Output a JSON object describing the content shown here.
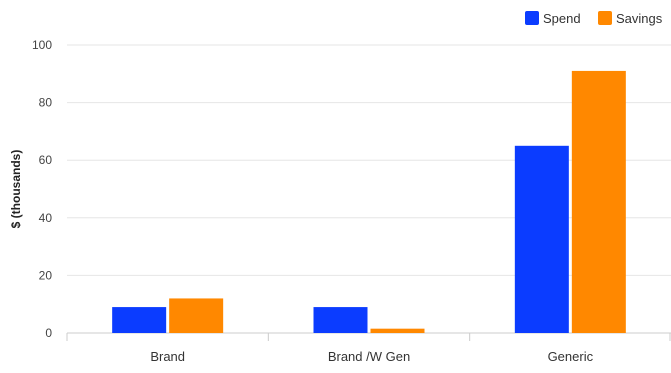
{
  "chart_data": {
    "type": "bar",
    "categories": [
      "Brand",
      "Brand /W Gen",
      "Generic"
    ],
    "series": [
      {
        "name": "Spend",
        "values": [
          9,
          9,
          65
        ]
      },
      {
        "name": "Savings",
        "values": [
          12,
          1.5,
          91
        ]
      }
    ],
    "title": "",
    "xlabel": "",
    "ylabel": "$ (thousands)",
    "ylim": [
      0,
      100
    ],
    "yticks": [
      0,
      20,
      40,
      60,
      80,
      100
    ],
    "grid": true,
    "legend_position": "top-right",
    "colors": {
      "Spend": "#0b3cff",
      "Savings": "#ff8800"
    }
  }
}
